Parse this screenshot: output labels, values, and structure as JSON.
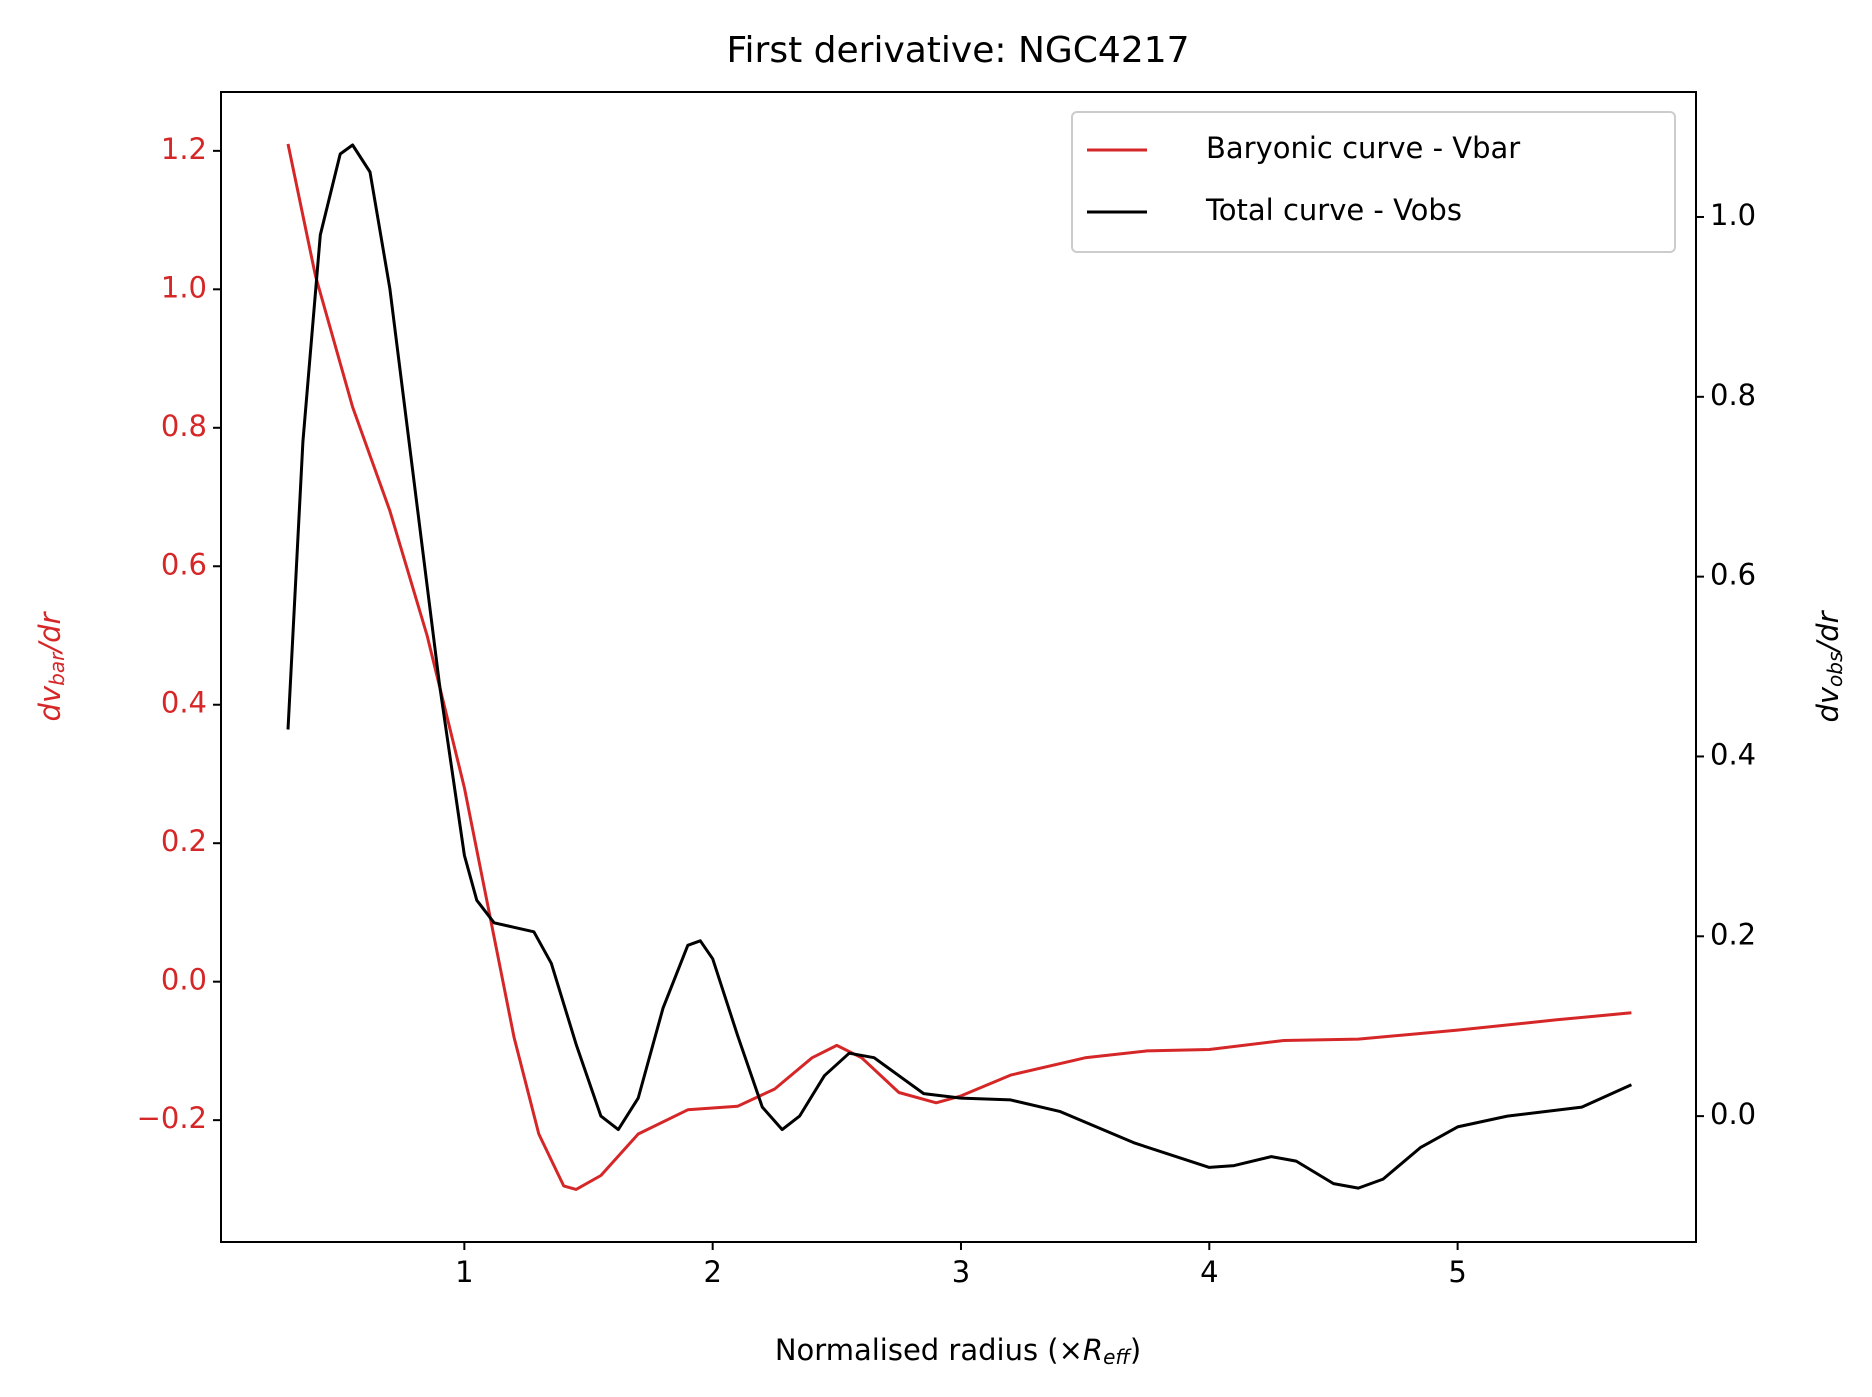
{
  "chart_data": {
    "type": "line",
    "title": "First derivative: NGC4217",
    "xlabel": [
      "Normalised radius (×",
      "R",
      "eff",
      ")"
    ],
    "ylabel": [
      "dv",
      "bar",
      "/dr"
    ],
    "y2label": [
      "dv",
      "obs",
      "/dr"
    ],
    "xlim": [
      0.02,
      5.96
    ],
    "xticks": [
      1,
      2,
      3,
      4,
      5
    ],
    "ylim": [
      -0.376,
      1.285
    ],
    "yticks": [
      {
        "value": -0.2,
        "label": "−0.2"
      },
      {
        "value": 0,
        "label": "0.0"
      },
      0.2,
      0.4,
      0.6,
      0.8,
      {
        "value": 1,
        "label": "1.0"
      },
      1.2
    ],
    "y2lim": [
      -0.14,
      1.139
    ],
    "y2ticks": [
      {
        "value": 0,
        "label": "0.0"
      },
      0.2,
      0.4,
      0.6,
      0.8,
      {
        "value": 1,
        "label": "1.0"
      }
    ],
    "legend": "upper right",
    "series": [
      {
        "name": "Baryonic curve - Vbar",
        "color": "#d62728",
        "axis": "y",
        "x": [
          0.29,
          0.4,
          0.55,
          0.7,
          0.85,
          1.0,
          1.1,
          1.2,
          1.3,
          1.4,
          1.45,
          1.55,
          1.7,
          1.9,
          2.1,
          2.25,
          2.4,
          2.5,
          2.6,
          2.75,
          2.9,
          3.0,
          3.2,
          3.5,
          3.75,
          4.0,
          4.3,
          4.6,
          5.0,
          5.4,
          5.7
        ],
        "values": [
          1.21,
          1.02,
          0.83,
          0.68,
          0.5,
          0.28,
          0.1,
          -0.08,
          -0.22,
          -0.295,
          -0.3,
          -0.28,
          -0.22,
          -0.185,
          -0.18,
          -0.155,
          -0.11,
          -0.092,
          -0.11,
          -0.16,
          -0.175,
          -0.165,
          -0.135,
          -0.11,
          -0.1,
          -0.098,
          -0.085,
          -0.083,
          -0.07,
          -0.055,
          -0.045
        ]
      },
      {
        "name": "Total curve - Vobs",
        "color": "#000000",
        "axis": "y2",
        "x": [
          0.29,
          0.35,
          0.42,
          0.5,
          0.55,
          0.62,
          0.7,
          0.8,
          0.9,
          1.0,
          1.05,
          1.12,
          1.2,
          1.28,
          1.35,
          1.45,
          1.55,
          1.62,
          1.7,
          1.8,
          1.9,
          1.95,
          2.0,
          2.1,
          2.2,
          2.28,
          2.35,
          2.45,
          2.55,
          2.65,
          2.75,
          2.85,
          3.0,
          3.2,
          3.4,
          3.7,
          4.0,
          4.1,
          4.25,
          4.35,
          4.5,
          4.6,
          4.7,
          4.85,
          5.0,
          5.2,
          5.5,
          5.7
        ],
        "values": [
          0.43,
          0.75,
          0.98,
          1.07,
          1.08,
          1.05,
          0.92,
          0.7,
          0.48,
          0.29,
          0.24,
          0.215,
          0.21,
          0.205,
          0.17,
          0.08,
          0.0,
          -0.015,
          0.02,
          0.12,
          0.19,
          0.195,
          0.175,
          0.09,
          0.01,
          -0.015,
          0.0,
          0.045,
          0.07,
          0.065,
          0.045,
          0.025,
          0.02,
          0.018,
          0.005,
          -0.03,
          -0.057,
          -0.055,
          -0.045,
          -0.05,
          -0.075,
          -0.08,
          -0.07,
          -0.035,
          -0.012,
          0.0,
          0.01,
          0.035
        ]
      }
    ]
  }
}
